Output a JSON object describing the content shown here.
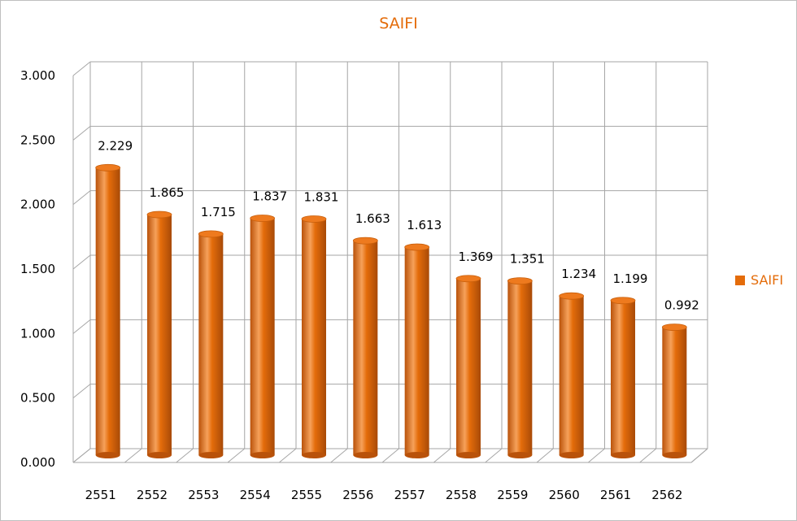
{
  "chart_data": {
    "type": "bar",
    "title": "SAIFI",
    "categories": [
      "2551",
      "2552",
      "2553",
      "2554",
      "2555",
      "2556",
      "2557",
      "2558",
      "2559",
      "2560",
      "2561",
      "2562"
    ],
    "series": [
      {
        "name": "SAIFI",
        "values": [
          2.229,
          1.865,
          1.715,
          1.837,
          1.831,
          1.663,
          1.613,
          1.369,
          1.351,
          1.234,
          1.199,
          0.992
        ]
      }
    ],
    "data_labels": [
      "2.229",
      "1.865",
      "1.715",
      "1.837",
      "1.831",
      "1.663",
      "1.613",
      "1.369",
      "1.351",
      "1.234",
      "1.199",
      "0.992"
    ],
    "y_ticks": [
      "0.000",
      "0.500",
      "1.000",
      "1.500",
      "2.000",
      "2.500",
      "3.000"
    ],
    "ylim": [
      0,
      3
    ],
    "xlabel": "",
    "ylabel": "",
    "grid": true,
    "legend_position": "right",
    "bar_style": "3d-cylinder",
    "colors": {
      "bar": "#E46C0A",
      "bar_dark": "#B9520A",
      "bar_light": "#F6A15A",
      "title": "#E46C0A",
      "grid": "#a6a6a6"
    }
  }
}
